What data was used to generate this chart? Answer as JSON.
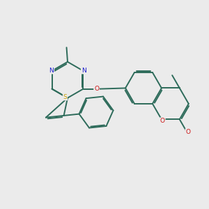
{
  "bg_color": "#ebebeb",
  "bond_color": "#2d6b5a",
  "bond_width": 1.4,
  "N_color": "#1a1acc",
  "S_color": "#c8a000",
  "O_color": "#cc1111",
  "label_color": "#1a1a1a",
  "figsize": [
    3.0,
    3.0
  ],
  "dpi": 100,
  "xlim": [
    0,
    10
  ],
  "ylim": [
    0,
    10
  ]
}
